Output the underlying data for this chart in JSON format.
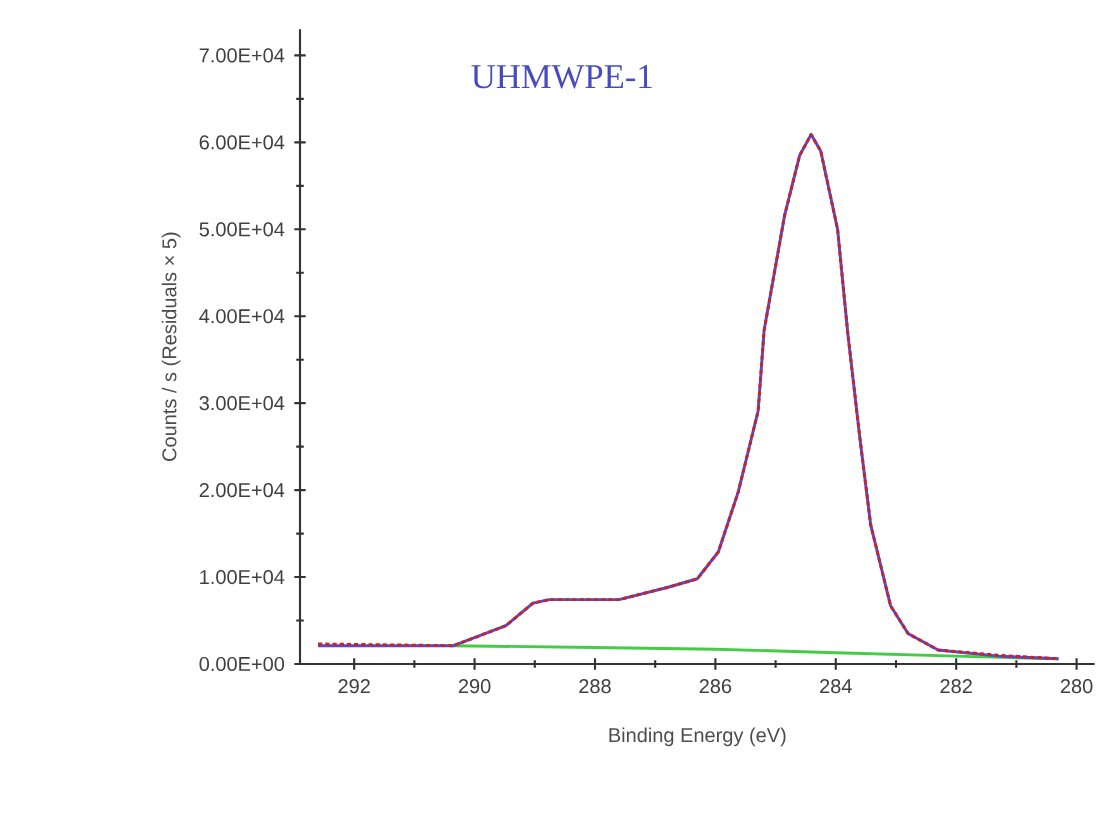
{
  "chart_data": {
    "type": "line",
    "title": "UHMWPE-1",
    "xlabel": "Binding Energy (eV)",
    "ylabel": "Counts / s  (Residuals × 5)",
    "xlim": [
      292.9,
      279.7
    ],
    "xticks": [
      292,
      290,
      288,
      286,
      284,
      282,
      280
    ],
    "ylim": [
      0,
      73000
    ],
    "yticks": [
      {
        "value": 0,
        "label": "0.00E+00"
      },
      {
        "value": 10000,
        "label": "1.00E+04"
      },
      {
        "value": 20000,
        "label": "2.00E+04"
      },
      {
        "value": 30000,
        "label": "3.00E+04"
      },
      {
        "value": 40000,
        "label": "4.00E+04"
      },
      {
        "value": 50000,
        "label": "5.00E+04"
      },
      {
        "value": 60000,
        "label": "6.00E+04"
      },
      {
        "value": 70000,
        "label": "7.00E+04"
      }
    ],
    "series": [
      {
        "color": "#44cc44",
        "x": [
          290.4,
          288,
          286,
          284,
          282,
          280.3
        ],
        "values": [
          2100,
          1900,
          1700,
          1300,
          900,
          600
        ]
      },
      {
        "color": "#4b4bdc",
        "x": [
          292.6,
          290.35,
          289.48,
          289.03,
          288.76,
          287.6,
          286.8,
          286.3,
          285.95,
          285.62,
          285.29,
          285.19,
          284.85,
          284.6,
          284.41,
          284.25,
          283.97,
          283.8,
          283.6,
          283.42,
          283.09,
          282.8,
          282.3,
          281.3,
          280.3
        ],
        "values": [
          2100,
          2100,
          4400,
          7000,
          7400,
          7400,
          8800,
          9800,
          12900,
          19800,
          29100,
          38400,
          51600,
          58500,
          60900,
          59000,
          50000,
          38000,
          26000,
          16000,
          6700,
          3500,
          1600,
          900,
          600
        ]
      },
      {
        "color": "#cc2222",
        "line_style": "dotted",
        "x": [
          292.6,
          290.35,
          289.48,
          289.03,
          288.76,
          287.6,
          286.8,
          286.3,
          285.95,
          285.62,
          285.29,
          285.19,
          284.85,
          284.6,
          284.41,
          284.25,
          283.97,
          283.8,
          283.6,
          283.42,
          283.09,
          282.8,
          282.3,
          281.3,
          280.3
        ],
        "values": [
          2300,
          2100,
          4400,
          7000,
          7400,
          7400,
          8800,
          9800,
          12900,
          19800,
          29100,
          38400,
          51600,
          58500,
          60900,
          59000,
          50000,
          38000,
          26000,
          16000,
          6700,
          3500,
          1600,
          1000,
          600
        ]
      }
    ]
  }
}
